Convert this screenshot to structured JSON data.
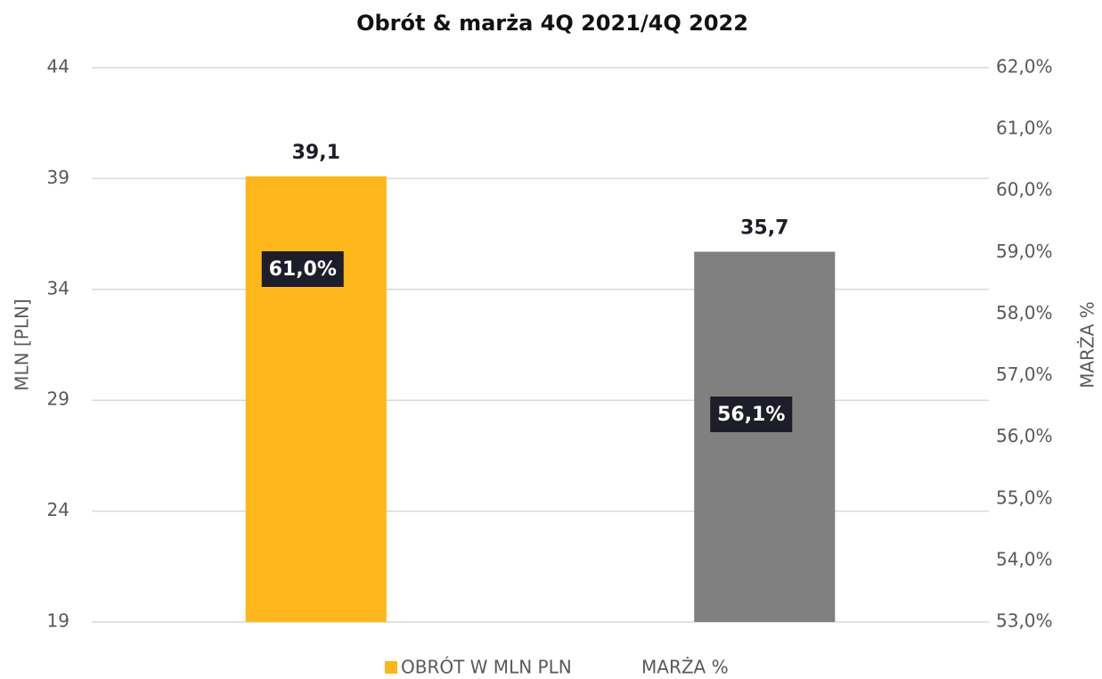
{
  "chart_data": {
    "type": "bar",
    "title": "Obrót & marża 4Q 2021/4Q 2022",
    "categories": [
      null,
      null
    ],
    "series": [
      {
        "name": "OBRÓT W MLN PLN",
        "color": "#fdb71a",
        "colors": [
          "#fdb71a",
          "#808080"
        ],
        "values": [
          39.1,
          35.7
        ],
        "value_labels": [
          "39,1",
          "35,7"
        ]
      },
      {
        "name": "MARŻA %",
        "axis": "y2",
        "values": [
          61.0,
          56.1
        ],
        "value_labels": [
          "61,0%",
          "56,1%"
        ]
      }
    ],
    "ylabel": "MLN [PLN]",
    "y2label": "MARŻA %",
    "ylim": [
      19,
      44
    ],
    "yticks": [
      19,
      24,
      29,
      34,
      39,
      44
    ],
    "y2lim": [
      53,
      62
    ],
    "y2ticks": [
      {
        "value": 53,
        "label": "53,0%"
      },
      {
        "value": 54,
        "label": "54,0%"
      },
      {
        "value": 55,
        "label": "55,0%"
      },
      {
        "value": 56,
        "label": "56,0%"
      },
      {
        "value": 57,
        "label": "57,0%"
      },
      {
        "value": 58,
        "label": "58,0%"
      },
      {
        "value": 59,
        "label": "59,0%"
      },
      {
        "value": 60,
        "label": "60,0%"
      },
      {
        "value": 61,
        "label": "61,0%"
      },
      {
        "value": 62,
        "label": "62,0%"
      }
    ],
    "grid": true,
    "legend": "bottom"
  }
}
